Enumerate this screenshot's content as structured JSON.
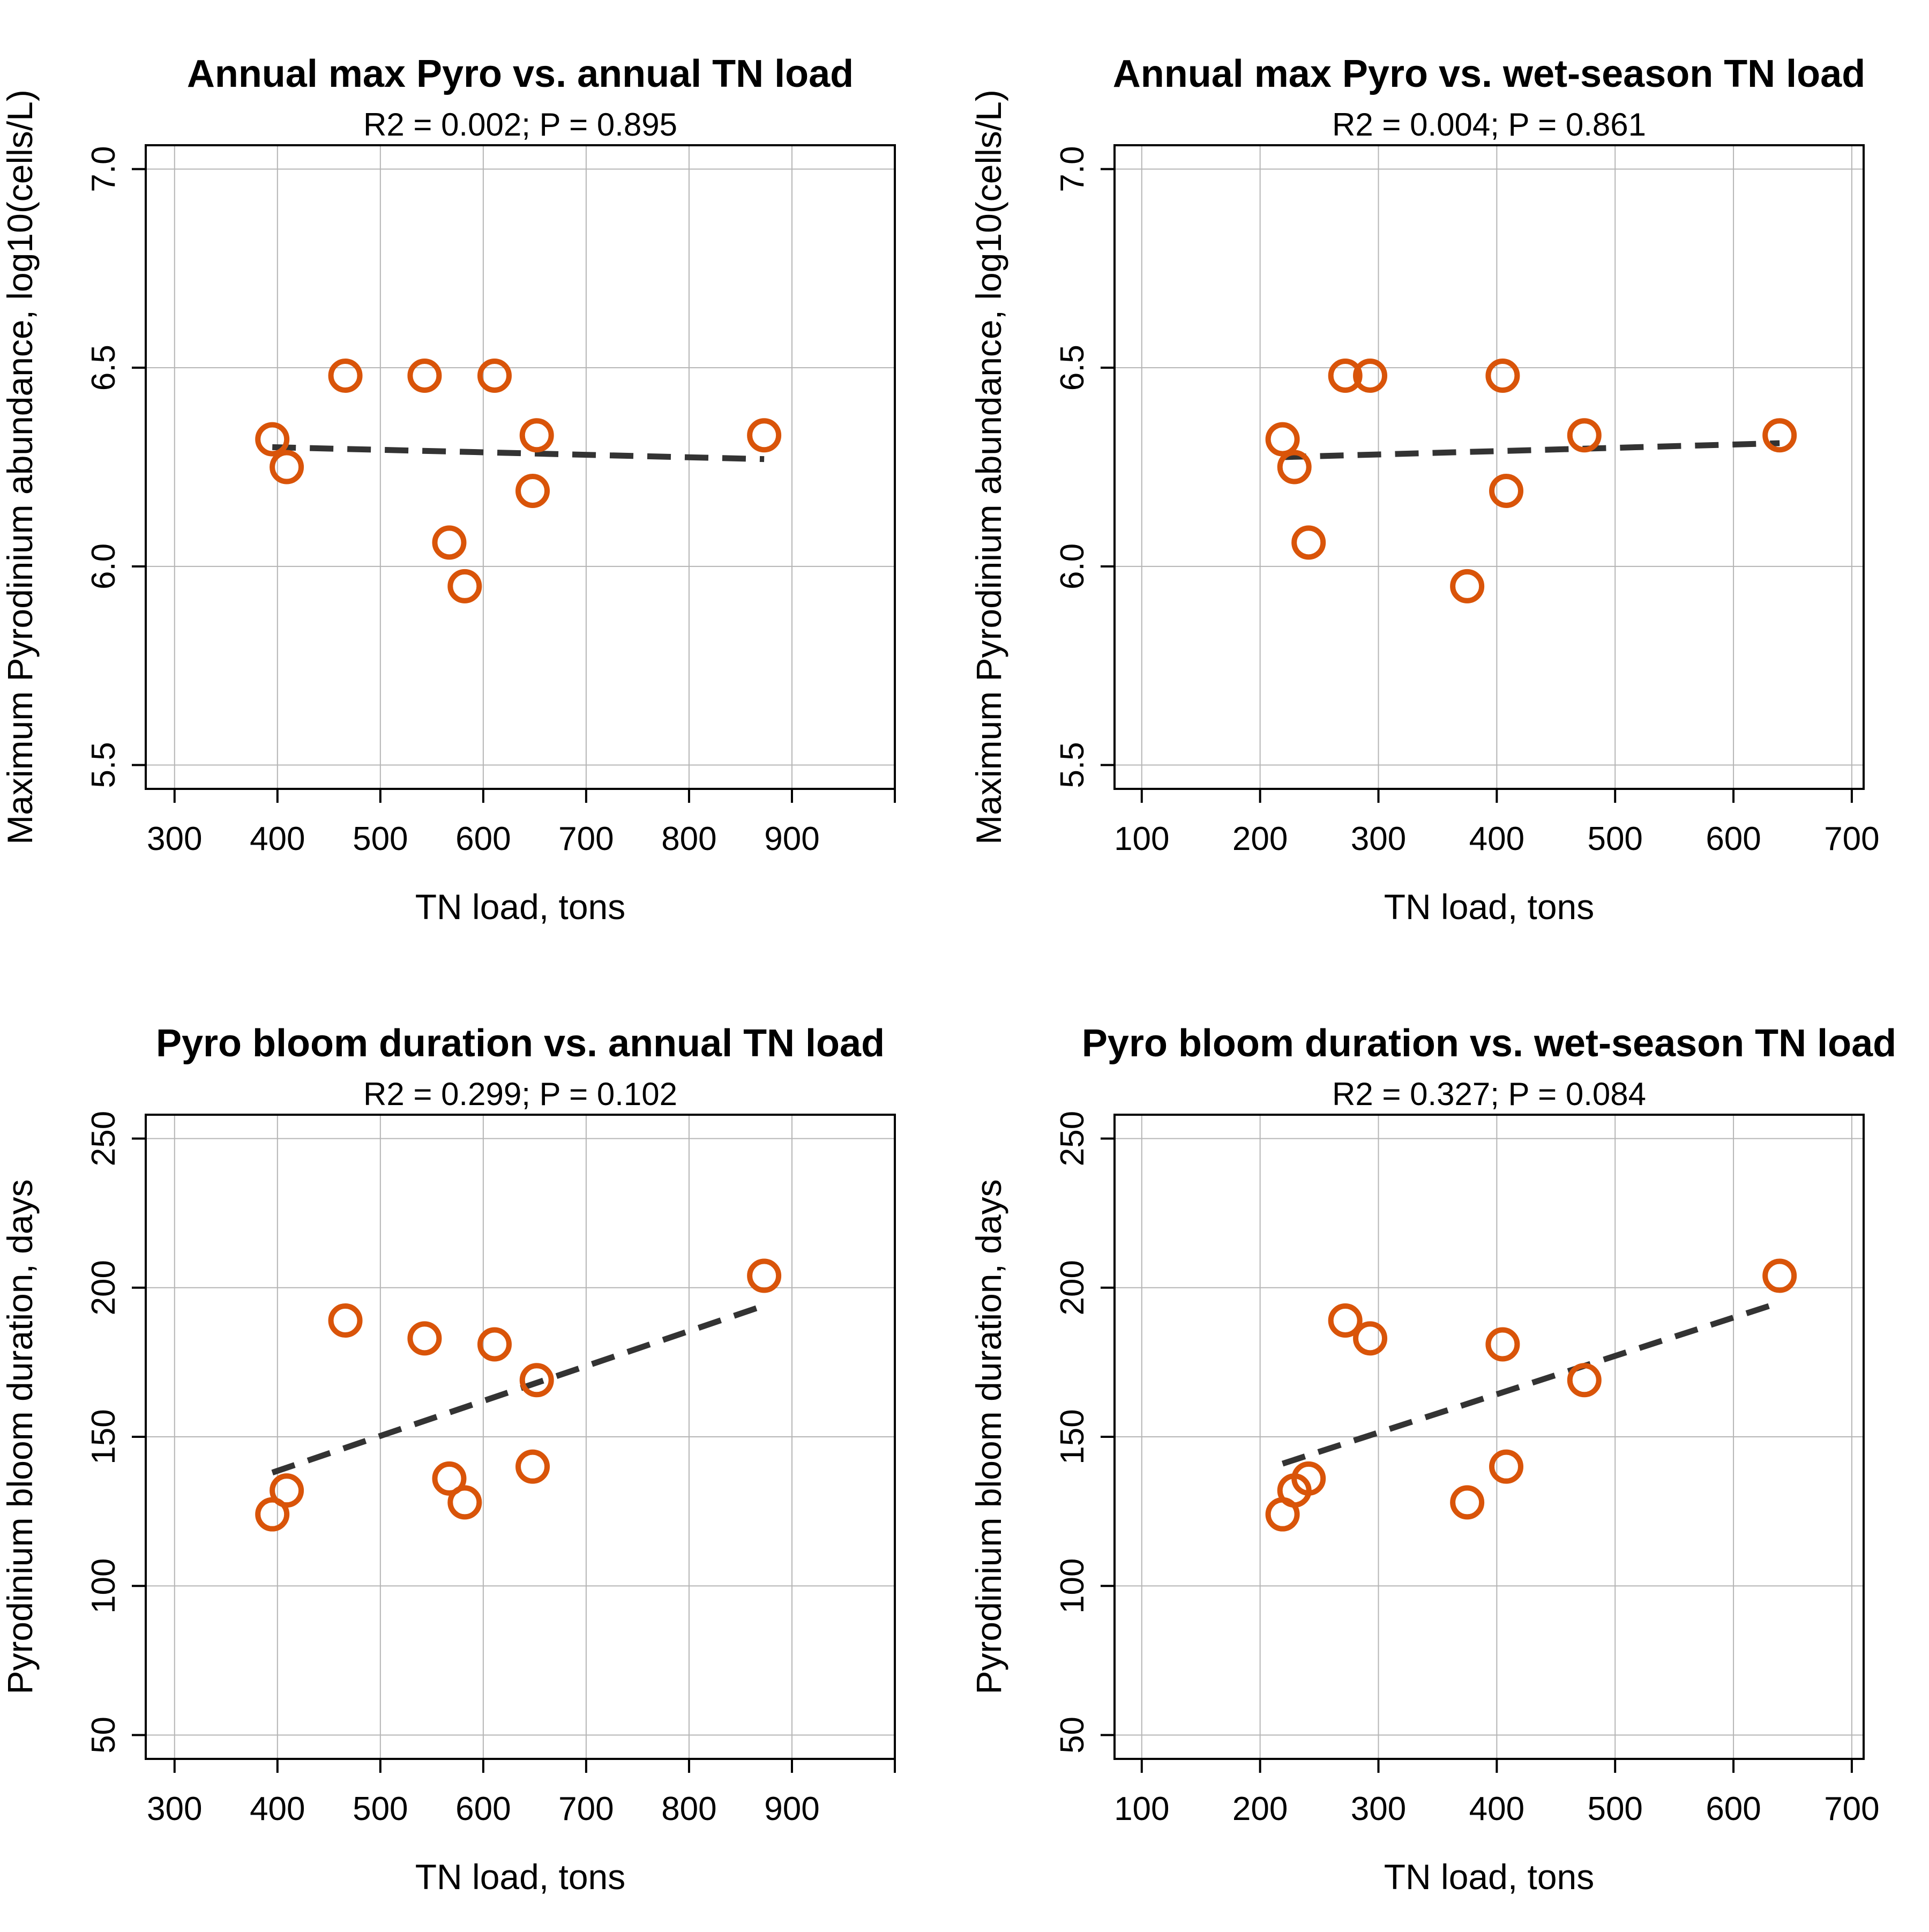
{
  "colors": {
    "points": "#d95409",
    "fit_line": "#333333",
    "grid": "#b5b5b5"
  },
  "chart_data": [
    {
      "type": "scatter",
      "title": "Annual max Pyro vs. annual TN load",
      "subtitle": "R2 = 0.002; P = 0.895",
      "xlabel": "TN load, tons",
      "ylabel": "Maximum Pyrodinium abundance, log10(cells/L)",
      "xlim": [
        272,
        1000
      ],
      "ylim": [
        5.44,
        7.06
      ],
      "xticks": [
        300,
        400,
        500,
        600,
        700,
        800,
        900,
        1000
      ],
      "xtick_labels": [
        "300",
        "400",
        "500",
        "600",
        "700",
        "800",
        "900",
        ""
      ],
      "yticks": [
        5.5,
        6.0,
        6.5,
        7.0
      ],
      "ytick_labels": [
        "5.5",
        "6.0",
        "6.5",
        "7.0"
      ],
      "grid": true,
      "x": [
        395,
        409,
        466,
        543,
        567,
        582,
        611,
        648,
        652,
        873
      ],
      "y": [
        6.32,
        6.25,
        6.48,
        6.48,
        6.06,
        5.95,
        6.48,
        6.19,
        6.33,
        6.33
      ],
      "fit_line": {
        "x": [
          395,
          873
        ],
        "y": [
          6.3,
          6.27
        ]
      }
    },
    {
      "type": "scatter",
      "title": "Annual max Pyro vs. wet-season TN load",
      "subtitle": "R2 = 0.004; P = 0.861",
      "xlabel": "TN load, tons",
      "ylabel": "Maximum Pyrodinium abundance, log10(cells/L)",
      "xlim": [
        77,
        710
      ],
      "ylim": [
        5.44,
        7.06
      ],
      "xticks": [
        100,
        200,
        300,
        400,
        500,
        600,
        700
      ],
      "xtick_labels": [
        "100",
        "200",
        "300",
        "400",
        "500",
        "600",
        "700"
      ],
      "yticks": [
        5.5,
        6.0,
        6.5,
        7.0
      ],
      "ytick_labels": [
        "5.5",
        "6.0",
        "6.5",
        "7.0"
      ],
      "grid": true,
      "x": [
        219,
        229,
        241,
        272,
        293,
        375,
        405,
        408,
        474,
        639
      ],
      "y": [
        6.32,
        6.25,
        6.06,
        6.48,
        6.48,
        5.95,
        6.48,
        6.19,
        6.33,
        6.33
      ],
      "fit_line": {
        "x": [
          219,
          639
        ],
        "y": [
          6.275,
          6.31
        ]
      }
    },
    {
      "type": "scatter",
      "title": "Pyro bloom duration vs. annual TN load",
      "subtitle": "R2 = 0.299; P = 0.102",
      "xlabel": "TN load, tons",
      "ylabel": "Pyrodinium bloom duration, days",
      "xlim": [
        272,
        1000
      ],
      "ylim": [
        42,
        258
      ],
      "xticks": [
        300,
        400,
        500,
        600,
        700,
        800,
        900,
        1000
      ],
      "xtick_labels": [
        "300",
        "400",
        "500",
        "600",
        "700",
        "800",
        "900",
        ""
      ],
      "yticks": [
        50,
        100,
        150,
        200,
        250
      ],
      "ytick_labels": [
        "50",
        "100",
        "150",
        "200",
        "250"
      ],
      "grid": true,
      "x": [
        395,
        409,
        466,
        543,
        567,
        582,
        611,
        648,
        652,
        873
      ],
      "y": [
        124,
        132,
        189,
        183,
        136,
        128,
        181,
        140,
        169,
        204
      ],
      "fit_line": {
        "x": [
          395,
          873
        ],
        "y": [
          138,
          194
        ]
      }
    },
    {
      "type": "scatter",
      "title": "Pyro bloom duration vs. wet-season TN load",
      "subtitle": "R2 = 0.327; P = 0.084",
      "xlabel": "TN load, tons",
      "ylabel": "Pyrodinium bloom duration, days",
      "xlim": [
        77,
        710
      ],
      "ylim": [
        42,
        258
      ],
      "xticks": [
        100,
        200,
        300,
        400,
        500,
        600,
        700
      ],
      "xtick_labels": [
        "100",
        "200",
        "300",
        "400",
        "500",
        "600",
        "700"
      ],
      "yticks": [
        50,
        100,
        150,
        200,
        250
      ],
      "ytick_labels": [
        "50",
        "100",
        "150",
        "200",
        "250"
      ],
      "grid": true,
      "x": [
        219,
        229,
        241,
        272,
        293,
        375,
        405,
        408,
        474,
        639
      ],
      "y": [
        124,
        132,
        136,
        189,
        183,
        128,
        181,
        140,
        169,
        204
      ],
      "fit_line": {
        "x": [
          219,
          639
        ],
        "y": [
          141,
          195
        ]
      }
    }
  ]
}
